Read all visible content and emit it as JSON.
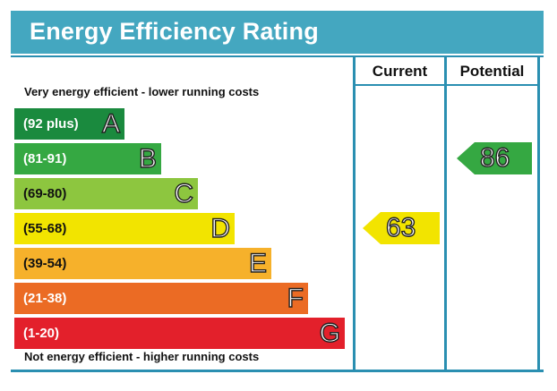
{
  "title": "Energy Efficiency Rating",
  "columns": {
    "current": "Current",
    "potential": "Potential"
  },
  "captions": {
    "top": "Very energy efficient - lower running costs",
    "bottom": "Not energy efficient - higher running costs"
  },
  "chart_data": {
    "type": "bar",
    "title": "Energy Efficiency Rating",
    "bands": [
      {
        "range": "(92 plus)",
        "letter": "A",
        "color": "#1a8a3e"
      },
      {
        "range": "(81-91)",
        "letter": "B",
        "color": "#35a842"
      },
      {
        "range": "(69-80)",
        "letter": "C",
        "color": "#8dc63f"
      },
      {
        "range": "(55-68)",
        "letter": "D",
        "color": "#f2e400"
      },
      {
        "range": "(39-54)",
        "letter": "E",
        "color": "#f6b12b"
      },
      {
        "range": "(21-38)",
        "letter": "F",
        "color": "#eb6b24"
      },
      {
        "range": "(1-20)",
        "letter": "G",
        "color": "#e3202b"
      }
    ],
    "current": {
      "value": 63,
      "band": "D",
      "color": "#f2e400"
    },
    "potential": {
      "value": 86,
      "band": "B",
      "color": "#35a842"
    }
  }
}
